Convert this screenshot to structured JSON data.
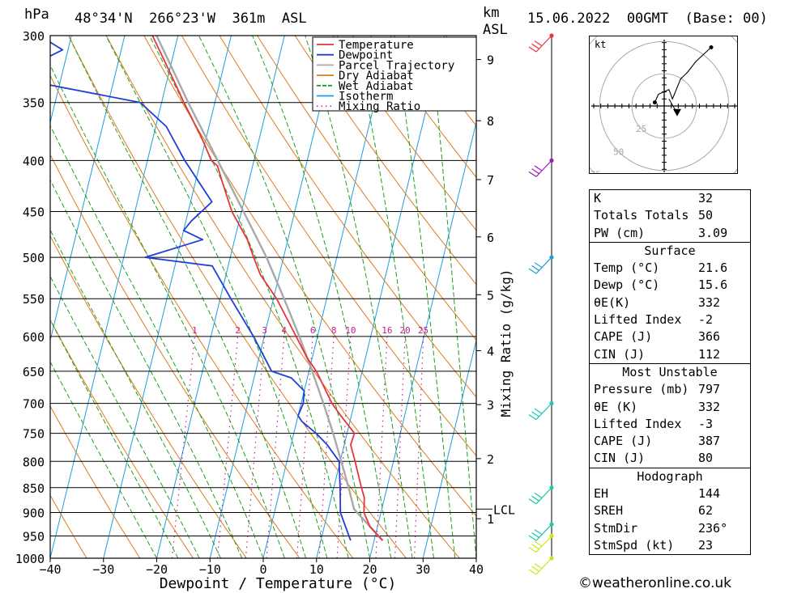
{
  "header": {
    "units_left": "hPa",
    "location": "48°34'N  266°23'W  361m  ASL",
    "units_km": "km",
    "units_asl": "ASL",
    "datetime": "15.06.2022  00GMT  (Base: 00)"
  },
  "chart_data": {
    "type": "skew-t log-p",
    "xlabel": "Dewpoint / Temperature (°C)",
    "ylabel_right": "Mixing Ratio (g/kg)",
    "xlim": [
      -40,
      40
    ],
    "ylim_hpa": [
      1000,
      300
    ],
    "pressure_levels": [
      300,
      350,
      400,
      450,
      500,
      550,
      600,
      650,
      700,
      750,
      800,
      850,
      900,
      950,
      1000
    ],
    "x_ticks": [
      -40,
      -30,
      -20,
      -10,
      0,
      10,
      20,
      30,
      40
    ],
    "km_ticks": [
      {
        "km": "1",
        "p": 913
      },
      {
        "km": "2",
        "p": 795
      },
      {
        "km": "3",
        "p": 702
      },
      {
        "km": "4",
        "p": 620
      },
      {
        "km": "5",
        "p": 545
      },
      {
        "km": "6",
        "p": 477
      },
      {
        "km": "7",
        "p": 418
      },
      {
        "km": "8",
        "p": 365
      },
      {
        "km": "9",
        "p": 317
      }
    ],
    "lcl_label": "LCL",
    "lcl_p": 893,
    "mixing_ratio_labels": [
      "1",
      "2",
      "3",
      "4",
      "6",
      "8",
      "10",
      "16",
      "20",
      "25"
    ],
    "legend": [
      {
        "name": "Temperature",
        "color": "#e8333a"
      },
      {
        "name": "Dewpoint",
        "color": "#1f3fd6"
      },
      {
        "name": "Parcel Trajectory",
        "color": "#a8a8a8"
      },
      {
        "name": "Dry Adiabat",
        "color": "#e07a1a"
      },
      {
        "name": "Wet Adiabat",
        "color": "#1aa21a"
      },
      {
        "name": "Isotherm",
        "color": "#1a9ee0"
      },
      {
        "name": "Mixing Ratio",
        "color": "#c81c8c"
      }
    ],
    "temperature": [
      {
        "p": 960,
        "t": 21.6
      },
      {
        "p": 930,
        "t": 18.6
      },
      {
        "p": 900,
        "t": 16.8
      },
      {
        "p": 870,
        "t": 16.2
      },
      {
        "p": 850,
        "t": 15.2
      },
      {
        "p": 800,
        "t": 12.8
      },
      {
        "p": 770,
        "t": 11.2
      },
      {
        "p": 750,
        "t": 11.4
      },
      {
        "p": 720,
        "t": 8.0
      },
      {
        "p": 700,
        "t": 5.8
      },
      {
        "p": 650,
        "t": 1.4
      },
      {
        "p": 630,
        "t": -1.0
      },
      {
        "p": 600,
        "t": -4.0
      },
      {
        "p": 550,
        "t": -9.4
      },
      {
        "p": 520,
        "t": -13.6
      },
      {
        "p": 500,
        "t": -15.6
      },
      {
        "p": 480,
        "t": -17.6
      },
      {
        "p": 450,
        "t": -21.8
      },
      {
        "p": 420,
        "t": -25.0
      },
      {
        "p": 405,
        "t": -26.6
      },
      {
        "p": 400,
        "t": -28.0
      },
      {
        "p": 380,
        "t": -30.8
      },
      {
        "p": 350,
        "t": -35.8
      },
      {
        "p": 330,
        "t": -39.2
      },
      {
        "p": 300,
        "t": -44.8
      }
    ],
    "dewpoint": [
      {
        "p": 960,
        "t": 15.6
      },
      {
        "p": 930,
        "t": 14.0
      },
      {
        "p": 900,
        "t": 12.4
      },
      {
        "p": 850,
        "t": 11.2
      },
      {
        "p": 800,
        "t": 9.8
      },
      {
        "p": 770,
        "t": 6.8
      },
      {
        "p": 750,
        "t": 4.2
      },
      {
        "p": 730,
        "t": 1.0
      },
      {
        "p": 720,
        "t": 0.0
      },
      {
        "p": 700,
        "t": 0.4
      },
      {
        "p": 680,
        "t": 0.0
      },
      {
        "p": 660,
        "t": -3.0
      },
      {
        "p": 650,
        "t": -7.0
      },
      {
        "p": 600,
        "t": -12.0
      },
      {
        "p": 550,
        "t": -18.0
      },
      {
        "p": 510,
        "t": -23.0
      },
      {
        "p": 500,
        "t": -36.0
      },
      {
        "p": 480,
        "t": -26.0
      },
      {
        "p": 470,
        "t": -30.0
      },
      {
        "p": 460,
        "t": -29.0
      },
      {
        "p": 440,
        "t": -26.0
      },
      {
        "p": 400,
        "t": -33.0
      },
      {
        "p": 370,
        "t": -38.0
      },
      {
        "p": 350,
        "t": -44.0
      },
      {
        "p": 330,
        "t": -70.0
      },
      {
        "p": 310,
        "t": -61.0
      },
      {
        "p": 300,
        "t": -66.0
      }
    ],
    "parcel": [
      {
        "p": 960,
        "t": 21.6
      },
      {
        "p": 893,
        "t": 14.8
      },
      {
        "p": 850,
        "t": 12.8
      },
      {
        "p": 800,
        "t": 10.2
      },
      {
        "p": 750,
        "t": 7.4
      },
      {
        "p": 700,
        "t": 4.2
      },
      {
        "p": 650,
        "t": 0.6
      },
      {
        "p": 600,
        "t": -3.4
      },
      {
        "p": 550,
        "t": -8.0
      },
      {
        "p": 500,
        "t": -13.2
      },
      {
        "p": 450,
        "t": -19.6
      },
      {
        "p": 400,
        "t": -26.8
      },
      {
        "p": 350,
        "t": -35.0
      },
      {
        "p": 300,
        "t": -44.0
      }
    ],
    "wind_barbs": [
      {
        "p": 300,
        "color": "#e8333a"
      },
      {
        "p": 400,
        "color": "#9a1ab8"
      },
      {
        "p": 500,
        "color": "#1aa0d8"
      },
      {
        "p": 700,
        "color": "#1acaa8"
      },
      {
        "p": 850,
        "color": "#1acaa8"
      },
      {
        "p": 925,
        "color": "#1acaa8"
      },
      {
        "p": 950,
        "color": "#c8e81a"
      },
      {
        "p": 1000,
        "color": "#c8e81a"
      }
    ],
    "hodograph": {
      "unit_label": "kt",
      "ring_labels": [
        "25",
        "50",
        "75"
      ],
      "trace_kt": [
        [
          -8,
          3
        ],
        [
          -5,
          10
        ],
        [
          4,
          14
        ],
        [
          7,
          6
        ],
        [
          14,
          23
        ],
        [
          20,
          29
        ],
        [
          27,
          38
        ],
        [
          40,
          50
        ]
      ],
      "storm_motion_kt": [
        11,
        -6
      ]
    }
  },
  "indices": {
    "k": {
      "label": "K",
      "value": "32"
    },
    "tt": {
      "label": "Totals Totals",
      "value": "50"
    },
    "pw": {
      "label": "PW (cm)",
      "value": "3.09"
    },
    "surface": {
      "title": "Surface",
      "temp": {
        "label": "Temp (°C)",
        "value": "21.6"
      },
      "dewp": {
        "label": "Dewp (°C)",
        "value": "15.6"
      },
      "thetae": {
        "label": "θE(K)",
        "value": "332"
      },
      "li": {
        "label": "Lifted Index",
        "value": "-2"
      },
      "cape": {
        "label": "CAPE (J)",
        "value": "366"
      },
      "cin": {
        "label": "CIN (J)",
        "value": "112"
      }
    },
    "mu": {
      "title": "Most Unstable",
      "pressure": {
        "label": "Pressure (mb)",
        "value": "797"
      },
      "thetae": {
        "label": "θE (K)",
        "value": "332"
      },
      "li": {
        "label": "Lifted Index",
        "value": "-3"
      },
      "cape": {
        "label": "CAPE (J)",
        "value": "387"
      },
      "cin": {
        "label": "CIN (J)",
        "value": "80"
      }
    },
    "hodo": {
      "title": "Hodograph",
      "eh": {
        "label": "EH",
        "value": "144"
      },
      "sreh": {
        "label": "SREH",
        "value": "62"
      },
      "stmdir": {
        "label": "StmDir",
        "value": "236°"
      },
      "stmspd": {
        "label": "StmSpd (kt)",
        "value": "23"
      }
    }
  },
  "footer": {
    "credit": "©weatheronline.co.uk"
  }
}
